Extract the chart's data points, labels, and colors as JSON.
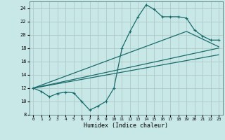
{
  "background_color": "#c8e8e8",
  "grid_color": "#b0c8c8",
  "line_color": "#1a6b6b",
  "x_label": "Humidex (Indice chaleur)",
  "ylim": [
    8,
    25
  ],
  "xlim": [
    -0.5,
    23.5
  ],
  "yticks": [
    8,
    10,
    12,
    14,
    16,
    18,
    20,
    22,
    24
  ],
  "xticks": [
    0,
    1,
    2,
    3,
    4,
    5,
    6,
    7,
    8,
    9,
    10,
    11,
    12,
    13,
    14,
    15,
    16,
    17,
    18,
    19,
    20,
    21,
    22,
    23
  ],
  "line1_x": [
    0,
    1,
    2,
    3,
    4,
    5,
    6,
    7,
    8,
    9,
    10,
    11,
    12,
    13,
    14,
    15,
    16,
    17,
    18,
    19,
    20,
    21,
    22,
    23
  ],
  "line1_y": [
    12,
    11.5,
    10.7,
    11.2,
    11.4,
    11.3,
    10.0,
    8.7,
    9.3,
    10.0,
    12.0,
    18.0,
    20.5,
    22.7,
    24.5,
    23.8,
    22.7,
    22.7,
    22.7,
    22.5,
    20.7,
    19.8,
    19.2,
    19.2
  ],
  "line2_x": [
    0,
    23
  ],
  "line2_y": [
    12,
    18.0
  ],
  "line3_x": [
    0,
    23
  ],
  "line3_y": [
    12,
    17.0
  ],
  "line4_x": [
    0,
    19,
    23
  ],
  "line4_y": [
    12,
    20.5,
    18.2
  ]
}
